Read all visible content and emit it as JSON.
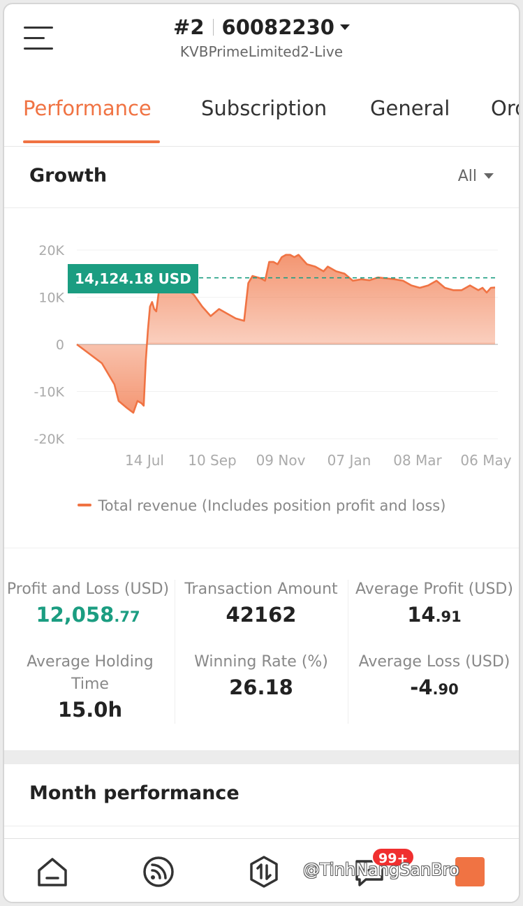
{
  "header": {
    "account_index": "#2",
    "account_number": "60082230",
    "server": "KVBPrimeLimited2-Live"
  },
  "tabs": [
    "Performance",
    "Subscription",
    "General",
    "Orders"
  ],
  "growth": {
    "title": "Growth",
    "range": "All",
    "current_value_label": "14,124.18 USD"
  },
  "chart_data": {
    "type": "area",
    "title": "",
    "xlabel": "",
    "ylabel": "",
    "ylim": [
      -20000,
      20000
    ],
    "yticks": [
      "20K",
      "10K",
      "0",
      "-10K",
      "-20K"
    ],
    "xticks": [
      "14 Jul",
      "10 Sep",
      "09 Nov",
      "07 Jan",
      "08 Mar",
      "06 May"
    ],
    "reference_line": 14124.18,
    "series": [
      {
        "name": "Total revenue (Includes position profit and loss)",
        "color": "#f07343",
        "t": [
          0,
          0.03,
          0.06,
          0.09,
          0.1,
          0.12,
          0.135,
          0.145,
          0.155,
          0.16,
          0.165,
          0.17,
          0.175,
          0.18,
          0.185,
          0.19,
          0.2,
          0.21,
          0.22,
          0.225,
          0.23,
          0.24,
          0.25,
          0.26,
          0.28,
          0.3,
          0.32,
          0.34,
          0.36,
          0.38,
          0.4,
          0.41,
          0.42,
          0.44,
          0.45,
          0.46,
          0.47,
          0.48,
          0.49,
          0.5,
          0.51,
          0.52,
          0.53,
          0.55,
          0.57,
          0.58,
          0.59,
          0.6,
          0.62,
          0.64,
          0.66,
          0.68,
          0.7,
          0.72,
          0.74,
          0.76,
          0.78,
          0.8,
          0.82,
          0.84,
          0.86,
          0.88,
          0.9,
          0.92,
          0.94,
          0.96,
          0.97,
          0.98,
          0.99,
          1.0
        ],
        "values": [
          0,
          -2000,
          -4000,
          -8500,
          -12000,
          -13500,
          -14500,
          -12000,
          -12500,
          -13000,
          -3500,
          3000,
          8000,
          9000,
          7500,
          7000,
          14000,
          14500,
          13500,
          13000,
          12500,
          11000,
          13000,
          12000,
          10500,
          8000,
          6000,
          7500,
          6500,
          5500,
          5000,
          13000,
          14500,
          14000,
          13500,
          17500,
          17500,
          17000,
          18500,
          19000,
          19000,
          18500,
          19000,
          17000,
          16500,
          16000,
          15500,
          16500,
          15500,
          15000,
          13500,
          13800,
          13600,
          14200,
          14000,
          13800,
          13500,
          12500,
          12000,
          12500,
          13500,
          12000,
          11500,
          11500,
          12500,
          11500,
          12000,
          11000,
          12000,
          12058.77
        ]
      }
    ],
    "legend": "bottom"
  },
  "stats": [
    {
      "label": "Profit and Loss (USD)",
      "value_int": "12,058",
      "value_dec": ".77"
    },
    {
      "label": "Transaction Amount",
      "value_int": "42162",
      "value_dec": ""
    },
    {
      "label": "Average Profit (USD)",
      "value_int": "14",
      "value_dec": ".91"
    },
    {
      "label": "Average Holding Time",
      "value_int": "15.0h",
      "value_dec": ""
    },
    {
      "label": "Winning Rate (%)",
      "value_int": "26.18",
      "value_dec": ""
    },
    {
      "label": "Average Loss (USD)",
      "value_int": "-4",
      "value_dec": ".90"
    }
  ],
  "month_performance": {
    "title": "Month performance"
  },
  "bottom_nav": {
    "items": [
      "home-icon",
      "feed-icon",
      "trade-icon",
      "message-icon",
      "profile-icon"
    ],
    "badge": "99+",
    "watermark": "@TinhNangSanBro"
  },
  "colors": {
    "accent": "#f07343",
    "positive": "#1b9d81",
    "badge": "#f02f2f"
  }
}
